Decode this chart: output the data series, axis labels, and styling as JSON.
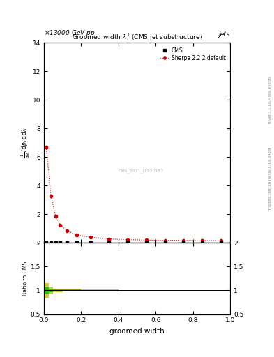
{
  "title": "Groomed width $\\lambda_1^1$ (CMS jet substructure)",
  "header_left": "13000 GeV pp",
  "header_right": "Jets",
  "right_label_top": "Rivet 3.1.10, 400k events",
  "right_label_bottom": "mcplots.cern.ch [arXiv:1306.3436]",
  "watermark": "CMS_2021_I1920187",
  "xlabel": "groomed width",
  "ylabel_lines": [
    "mathrm d$^2$N",
    "mathrm d $p_{\\rm T}$mathrm d lambda"
  ],
  "ylabel_ratio": "Ratio to CMS",
  "ylim_main": [
    0,
    14
  ],
  "ylim_ratio": [
    0.5,
    2.0
  ],
  "yticks_main": [
    0,
    2,
    4,
    6,
    8,
    10,
    12,
    14
  ],
  "yticks_ratio": [
    0.5,
    1.0,
    1.5,
    2.0
  ],
  "xlim": [
    0,
    1
  ],
  "cms_bin_edges": [
    0.0,
    0.025,
    0.05,
    0.075,
    0.1,
    0.15,
    0.2,
    0.3,
    0.4,
    0.5,
    0.6,
    0.7,
    0.8,
    0.9,
    1.0
  ],
  "cms_bin_vals": [
    0.0,
    0.0,
    0.0,
    0.0,
    0.0,
    0.0,
    0.0,
    0.0,
    0.0,
    0.0,
    0.0,
    0.0,
    0.0,
    0.0
  ],
  "sherpa_x": [
    0.013,
    0.038,
    0.063,
    0.088,
    0.125,
    0.175,
    0.25,
    0.35,
    0.45,
    0.55,
    0.65,
    0.75,
    0.85,
    0.95
  ],
  "sherpa_y": [
    6.7,
    3.3,
    1.85,
    1.25,
    0.85,
    0.55,
    0.38,
    0.27,
    0.22,
    0.19,
    0.175,
    0.16,
    0.15,
    0.14
  ],
  "ratio_bin_edges": [
    0.0,
    0.025,
    0.05,
    0.1,
    0.2,
    0.4,
    0.7,
    1.0
  ],
  "ratio_yellow_lo": [
    0.85,
    0.92,
    0.96,
    0.97,
    0.98,
    0.99,
    0.995
  ],
  "ratio_yellow_hi": [
    1.15,
    1.08,
    1.04,
    1.03,
    1.02,
    1.01,
    1.005
  ],
  "ratio_green_lo": [
    0.92,
    0.96,
    0.98,
    0.985,
    0.99,
    0.995,
    0.997
  ],
  "ratio_green_hi": [
    1.08,
    1.04,
    1.02,
    1.015,
    1.01,
    1.005,
    1.003
  ],
  "cms_color": "#000000",
  "sherpa_color": "#cc0000",
  "green_color": "#00bb00",
  "yellow_color": "#bbbb00",
  "background_color": "#ffffff"
}
